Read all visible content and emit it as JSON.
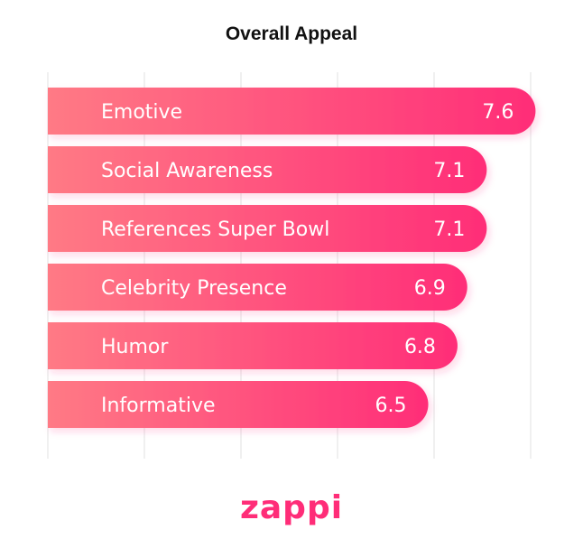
{
  "chart_data": {
    "type": "bar",
    "orientation": "horizontal",
    "title": "Overall Appeal",
    "categories": [
      "Emotive",
      "Social Awareness",
      "References Super Bowl",
      "Celebrity Presence",
      "Humor",
      "Informative"
    ],
    "values": [
      7.6,
      7.1,
      7.1,
      6.9,
      6.8,
      6.5
    ],
    "value_labels": [
      "7.6",
      "7.1",
      "7.1",
      "6.9",
      "6.8",
      "6.5"
    ],
    "xlim": [
      2.6,
      7.55
    ],
    "grid": true,
    "legend": "none"
  },
  "colors": {
    "bar_gradient_start": "#ff7a85",
    "bar_gradient_end": "#ff2d78",
    "gridline": "#e2e2e2",
    "brand": "#ff2d78"
  },
  "brand": {
    "logo_text": "zappi"
  }
}
